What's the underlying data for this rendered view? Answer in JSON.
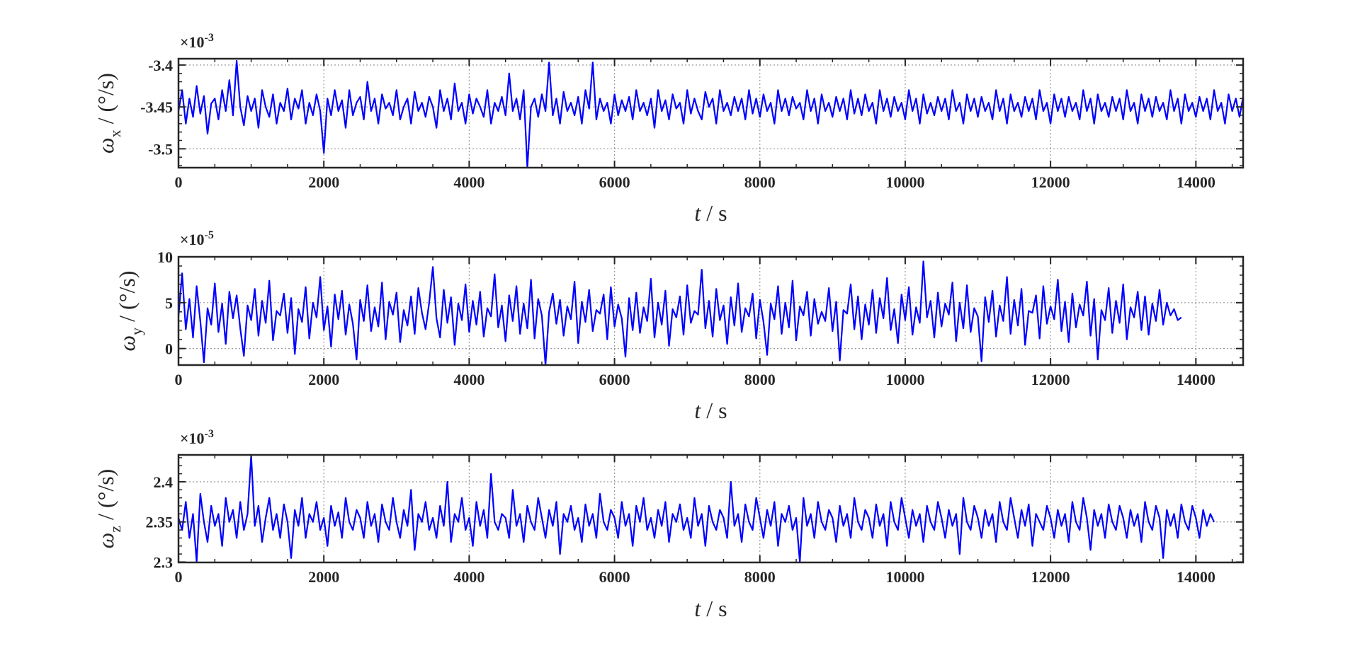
{
  "chart_data": [
    {
      "type": "line",
      "xlabel_italic": "t",
      "xlabel_rest": " / s",
      "ylabel_symbol": "ω",
      "ylabel_sub": "x",
      "ylabel_rest": " / (°/s)",
      "exponent_label": "×10",
      "exponent_power": "-3",
      "xlim": [
        0,
        14650
      ],
      "ylim": [
        -3.5225,
        -3.3925
      ],
      "xticks": [
        0,
        2000,
        4000,
        6000,
        8000,
        10000,
        12000,
        14000
      ],
      "xtick_labels": [
        "0",
        "2000",
        "4000",
        "6000",
        "8000",
        "10000",
        "12000",
        "14000"
      ],
      "yticks": [
        -3.5,
        -3.45,
        -3.4
      ],
      "ytick_labels": [
        "-3.5",
        "-3.45",
        "-3.4"
      ],
      "grid": true,
      "series": [
        {
          "color": "#0000ff",
          "x_start": 0,
          "x_step": 50,
          "y": [
            -3.455,
            -3.43,
            -3.47,
            -3.44,
            -3.462,
            -3.425,
            -3.458,
            -3.437,
            -3.482,
            -3.446,
            -3.44,
            -3.465,
            -3.43,
            -3.455,
            -3.418,
            -3.46,
            -3.395,
            -3.45,
            -3.472,
            -3.437,
            -3.455,
            -3.44,
            -3.475,
            -3.43,
            -3.45,
            -3.462,
            -3.435,
            -3.47,
            -3.445,
            -3.455,
            -3.428,
            -3.465,
            -3.44,
            -3.452,
            -3.43,
            -3.47,
            -3.445,
            -3.46,
            -3.435,
            -3.455,
            -3.505,
            -3.44,
            -3.46,
            -3.43,
            -3.455,
            -3.442,
            -3.475,
            -3.43,
            -3.46,
            -3.445,
            -3.438,
            -3.465,
            -3.42,
            -3.455,
            -3.44,
            -3.47,
            -3.435,
            -3.452,
            -3.445,
            -3.46,
            -3.43,
            -3.465,
            -3.45,
            -3.44,
            -3.47,
            -3.432,
            -3.455,
            -3.445,
            -3.462,
            -3.438,
            -3.45,
            -3.475,
            -3.43,
            -3.455,
            -3.44,
            -3.465,
            -3.422,
            -3.455,
            -3.445,
            -3.47,
            -3.435,
            -3.458,
            -3.44,
            -3.45,
            -3.462,
            -3.43,
            -3.47,
            -3.445,
            -3.455,
            -3.438,
            -3.46,
            -3.41,
            -3.455,
            -3.44,
            -3.465,
            -3.43,
            -3.525,
            -3.45,
            -3.44,
            -3.462,
            -3.435,
            -3.455,
            -3.397,
            -3.46,
            -3.44,
            -3.47,
            -3.432,
            -3.455,
            -3.445,
            -3.46,
            -3.438,
            -3.47,
            -3.43,
            -3.452,
            -3.397,
            -3.465,
            -3.44,
            -3.455,
            -3.445,
            -3.47,
            -3.435,
            -3.46,
            -3.442,
            -3.455,
            -3.438,
            -3.465,
            -3.43,
            -3.455,
            -3.445,
            -3.46,
            -3.44,
            -3.475,
            -3.43,
            -3.455,
            -3.442,
            -3.465,
            -3.435,
            -3.452,
            -3.445,
            -3.47,
            -3.43,
            -3.458,
            -3.44,
            -3.455,
            -3.465,
            -3.432,
            -3.45,
            -3.44,
            -3.47,
            -3.43,
            -3.455,
            -3.445,
            -3.46,
            -3.438,
            -3.455,
            -3.44,
            -3.465,
            -3.43,
            -3.458,
            -3.44,
            -3.462,
            -3.435,
            -3.455,
            -3.445,
            -3.47,
            -3.43,
            -3.455,
            -3.44,
            -3.46,
            -3.438,
            -3.452,
            -3.445,
            -3.465,
            -3.43,
            -3.455,
            -3.44,
            -3.47,
            -3.435,
            -3.455,
            -3.445,
            -3.462,
            -3.438,
            -3.455,
            -3.44,
            -3.465,
            -3.43,
            -3.458,
            -3.44,
            -3.46,
            -3.435,
            -3.455,
            -3.445,
            -3.47,
            -3.43,
            -3.455,
            -3.44,
            -3.462,
            -3.438,
            -3.455,
            -3.445,
            -3.465,
            -3.43,
            -3.455,
            -3.44,
            -3.47,
            -3.435,
            -3.458,
            -3.445,
            -3.46,
            -3.438,
            -3.455,
            -3.44,
            -3.465,
            -3.43,
            -3.455,
            -3.445,
            -3.47,
            -3.435,
            -3.455,
            -3.44,
            -3.462,
            -3.438,
            -3.455,
            -3.445,
            -3.465,
            -3.43,
            -3.455,
            -3.44,
            -3.47,
            -3.435,
            -3.455,
            -3.445,
            -3.462,
            -3.438,
            -3.455,
            -3.44,
            -3.465,
            -3.43,
            -3.455,
            -3.445,
            -3.47,
            -3.435,
            -3.455,
            -3.44,
            -3.462,
            -3.438,
            -3.455,
            -3.445,
            -3.465,
            -3.43,
            -3.455,
            -3.44,
            -3.47,
            -3.435,
            -3.455,
            -3.445,
            -3.462,
            -3.438,
            -3.455,
            -3.44,
            -3.465,
            -3.43,
            -3.455,
            -3.445,
            -3.47,
            -3.435,
            -3.455,
            -3.44,
            -3.462,
            -3.438,
            -3.455,
            -3.445,
            -3.465,
            -3.43,
            -3.455,
            -3.44,
            -3.47,
            -3.435,
            -3.455,
            -3.445,
            -3.462,
            -3.438,
            -3.455,
            -3.44,
            -3.465,
            -3.43,
            -3.455,
            -3.445,
            -3.47,
            -3.435,
            -3.455,
            -3.44,
            -3.462,
            -3.438,
            -3.455,
            -3.445,
            -3.455
          ]
        }
      ]
    },
    {
      "type": "line",
      "xlabel_italic": "t",
      "xlabel_rest": " / s",
      "ylabel_symbol": "ω",
      "ylabel_sub": "y",
      "ylabel_rest": " / (°/s)",
      "exponent_label": "×10",
      "exponent_power": "-5",
      "xlim": [
        0,
        14650
      ],
      "ylim": [
        -1.8,
        10
      ],
      "xticks": [
        0,
        2000,
        4000,
        6000,
        8000,
        10000,
        12000,
        14000
      ],
      "xtick_labels": [
        "0",
        "2000",
        "4000",
        "6000",
        "8000",
        "10000",
        "12000",
        "14000"
      ],
      "yticks": [
        0,
        5,
        10
      ],
      "ytick_labels": [
        "0",
        "5",
        "10"
      ],
      "grid": true,
      "series": [
        {
          "color": "#0000ff",
          "x_start": 0,
          "x_step": 50,
          "y": [
            3.5,
            8.2,
            2.1,
            5.4,
            1.2,
            6.8,
            3.0,
            -1.5,
            4.4,
            2.6,
            7.1,
            1.8,
            4.9,
            0.5,
            6.2,
            3.3,
            5.8,
            2.2,
            -0.8,
            4.7,
            3.1,
            6.5,
            1.4,
            5.2,
            2.8,
            7.4,
            0.9,
            4.1,
            3.6,
            6.0,
            1.7,
            5.5,
            -0.6,
            4.3,
            2.9,
            6.7,
            1.1,
            5.0,
            3.4,
            7.8,
            2.0,
            4.6,
            0.2,
            5.9,
            3.2,
            6.3,
            1.5,
            4.8,
            2.7,
            -1.2,
            5.3,
            3.0,
            6.9,
            1.9,
            4.5,
            2.4,
            7.2,
            1.0,
            5.1,
            3.7,
            6.1,
            0.7,
            4.2,
            2.5,
            5.7,
            1.6,
            6.6,
            3.9,
            2.1,
            5.0,
            8.9,
            3.3,
            1.2,
            6.4,
            2.8,
            5.6,
            0.4,
            4.9,
            3.1,
            7.0,
            1.8,
            5.2,
            2.6,
            6.2,
            1.3,
            4.4,
            3.5,
            8.1,
            2.3,
            4.7,
            0.8,
            5.8,
            3.0,
            6.8,
            1.6,
            4.9,
            2.2,
            7.5,
            1.1,
            5.4,
            3.6,
            -1.8,
            4.0,
            6.0,
            2.7,
            5.3,
            1.4,
            4.6,
            3.2,
            7.3,
            0.6,
            5.1,
            2.9,
            6.4,
            1.9,
            4.2,
            3.8,
            5.9,
            1.0,
            6.7,
            2.4,
            4.8,
            3.3,
            -0.9,
            5.5,
            2.0,
            6.1,
            1.7,
            4.5,
            3.0,
            7.6,
            1.2,
            5.0,
            2.6,
            6.3,
            0.3,
            4.3,
            3.4,
            5.7,
            1.5,
            6.9,
            2.8,
            4.1,
            3.7,
            8.6,
            2.2,
            5.2,
            1.3,
            6.5,
            3.1,
            4.7,
            0.5,
            5.6,
            2.5,
            7.1,
            1.8,
            4.4,
            3.5,
            6.0,
            1.1,
            5.3,
            2.9,
            -0.7,
            4.9,
            3.2,
            6.8,
            1.6,
            5.0,
            2.3,
            7.4,
            0.9,
            4.6,
            3.6,
            6.2,
            1.4,
            5.4,
            2.7,
            4.0,
            3.0,
            6.6,
            1.9,
            5.1,
            -1.3,
            4.2,
            3.8,
            7.0,
            2.1,
            5.7,
            1.0,
            4.8,
            2.6,
            6.4,
            1.7,
            5.5,
            3.3,
            7.7,
            2.0,
            4.3,
            0.6,
            5.9,
            3.1,
            6.7,
            1.5,
            4.5,
            2.8,
            9.5,
            3.4,
            5.2,
            1.2,
            6.1,
            2.4,
            4.9,
            3.7,
            7.2,
            0.8,
            5.0,
            2.2,
            6.9,
            1.8,
            4.4,
            3.5,
            -1.4,
            5.6,
            2.9,
            6.3,
            1.3,
            4.7,
            3.0,
            7.8,
            1.6,
            5.3,
            2.5,
            6.5,
            0.4,
            4.1,
            3.9,
            5.8,
            1.1,
            6.8,
            2.7,
            4.6,
            3.2,
            7.5,
            1.9,
            5.1,
            0.7,
            6.0,
            2.3,
            4.8,
            3.6,
            7.3,
            1.4,
            5.4,
            -1.2,
            4.2,
            3.1,
            6.6,
            1.7,
            5.2,
            2.8,
            7.0,
            1.0,
            4.5,
            3.4,
            6.2,
            2.0,
            5.7,
            1.5,
            4.9,
            3.0,
            6.4,
            2.6,
            5.0,
            3.6,
            4.3,
            3.1,
            3.4
          ]
        }
      ]
    },
    {
      "type": "line",
      "xlabel_italic": "t",
      "xlabel_rest": " / s",
      "ylabel_symbol": "ω",
      "ylabel_sub": "z",
      "ylabel_rest": " / (°/s)",
      "exponent_label": "×10",
      "exponent_power": "-3",
      "xlim": [
        0,
        14650
      ],
      "ylim": [
        2.2995,
        2.4335
      ],
      "xticks": [
        0,
        2000,
        4000,
        6000,
        8000,
        10000,
        12000,
        14000
      ],
      "xtick_labels": [
        "0",
        "2000",
        "4000",
        "6000",
        "8000",
        "10000",
        "12000",
        "14000"
      ],
      "yticks": [
        2.3,
        2.35,
        2.4
      ],
      "ytick_labels": [
        "2.3",
        "2.35",
        "2.4"
      ],
      "grid": true,
      "series": [
        {
          "color": "#0000ff",
          "x_start": 0,
          "x_step": 50,
          "y": [
            2.355,
            2.34,
            2.375,
            2.33,
            2.36,
            2.3,
            2.385,
            2.35,
            2.325,
            2.37,
            2.345,
            2.36,
            2.32,
            2.38,
            2.35,
            2.365,
            2.33,
            2.375,
            2.34,
            2.36,
            2.433,
            2.345,
            2.37,
            2.325,
            2.355,
            2.38,
            2.34,
            2.36,
            2.33,
            2.372,
            2.35,
            2.305,
            2.365,
            2.345,
            2.38,
            2.33,
            2.36,
            2.35,
            2.375,
            2.34,
            2.355,
            2.32,
            2.37,
            2.345,
            2.362,
            2.33,
            2.38,
            2.35,
            2.34,
            2.365,
            2.355,
            2.33,
            2.375,
            2.345,
            2.36,
            2.325,
            2.372,
            2.35,
            2.34,
            2.38,
            2.35,
            2.33,
            2.365,
            2.345,
            2.39,
            2.315,
            2.36,
            2.35,
            2.375,
            2.34,
            2.355,
            2.33,
            2.37,
            2.345,
            2.4,
            2.325,
            2.36,
            2.35,
            2.38,
            2.34,
            2.355,
            2.32,
            2.375,
            2.345,
            2.365,
            2.33,
            2.41,
            2.35,
            2.34,
            2.36,
            2.355,
            2.33,
            2.39,
            2.345,
            2.36,
            2.325,
            2.37,
            2.35,
            2.34,
            2.38,
            2.355,
            2.33,
            2.365,
            2.345,
            2.375,
            2.31,
            2.36,
            2.35,
            2.37,
            2.34,
            2.355,
            2.325,
            2.372,
            2.345,
            2.36,
            2.33,
            2.385,
            2.35,
            2.34,
            2.365,
            2.355,
            2.33,
            2.375,
            2.345,
            2.36,
            2.32,
            2.37,
            2.35,
            2.38,
            2.34,
            2.355,
            2.33,
            2.365,
            2.345,
            2.375,
            2.325,
            2.36,
            2.35,
            2.372,
            2.34,
            2.355,
            2.33,
            2.38,
            2.345,
            2.36,
            2.32,
            2.37,
            2.35,
            2.34,
            2.365,
            2.355,
            2.33,
            2.4,
            2.345,
            2.36,
            2.325,
            2.372,
            2.35,
            2.34,
            2.38,
            2.355,
            2.33,
            2.365,
            2.345,
            2.375,
            2.32,
            2.36,
            2.35,
            2.37,
            2.34,
            2.355,
            2.3,
            2.38,
            2.345,
            2.36,
            2.33,
            2.375,
            2.35,
            2.34,
            2.365,
            2.355,
            2.325,
            2.37,
            2.345,
            2.36,
            2.33,
            2.38,
            2.35,
            2.34,
            2.365,
            2.355,
            2.33,
            2.372,
            2.345,
            2.36,
            2.32,
            2.375,
            2.35,
            2.34,
            2.38,
            2.355,
            2.33,
            2.365,
            2.345,
            2.36,
            2.325,
            2.37,
            2.35,
            2.34,
            2.375,
            2.355,
            2.33,
            2.365,
            2.345,
            2.36,
            2.31,
            2.38,
            2.35,
            2.34,
            2.37,
            2.355,
            2.33,
            2.365,
            2.345,
            2.36,
            2.325,
            2.375,
            2.35,
            2.34,
            2.38,
            2.355,
            2.33,
            2.365,
            2.345,
            2.372,
            2.32,
            2.36,
            2.35,
            2.34,
            2.37,
            2.355,
            2.33,
            2.365,
            2.345,
            2.36,
            2.325,
            2.375,
            2.35,
            2.34,
            2.38,
            2.355,
            2.315,
            2.365,
            2.345,
            2.36,
            2.33,
            2.372,
            2.35,
            2.34,
            2.37,
            2.355,
            2.33,
            2.365,
            2.345,
            2.36,
            2.325,
            2.375,
            2.35,
            2.34,
            2.37,
            2.355,
            2.305,
            2.365,
            2.345,
            2.36,
            2.33,
            2.372,
            2.35,
            2.34,
            2.37,
            2.355,
            2.33,
            2.365,
            2.345,
            2.36,
            2.35
          ]
        }
      ]
    }
  ]
}
